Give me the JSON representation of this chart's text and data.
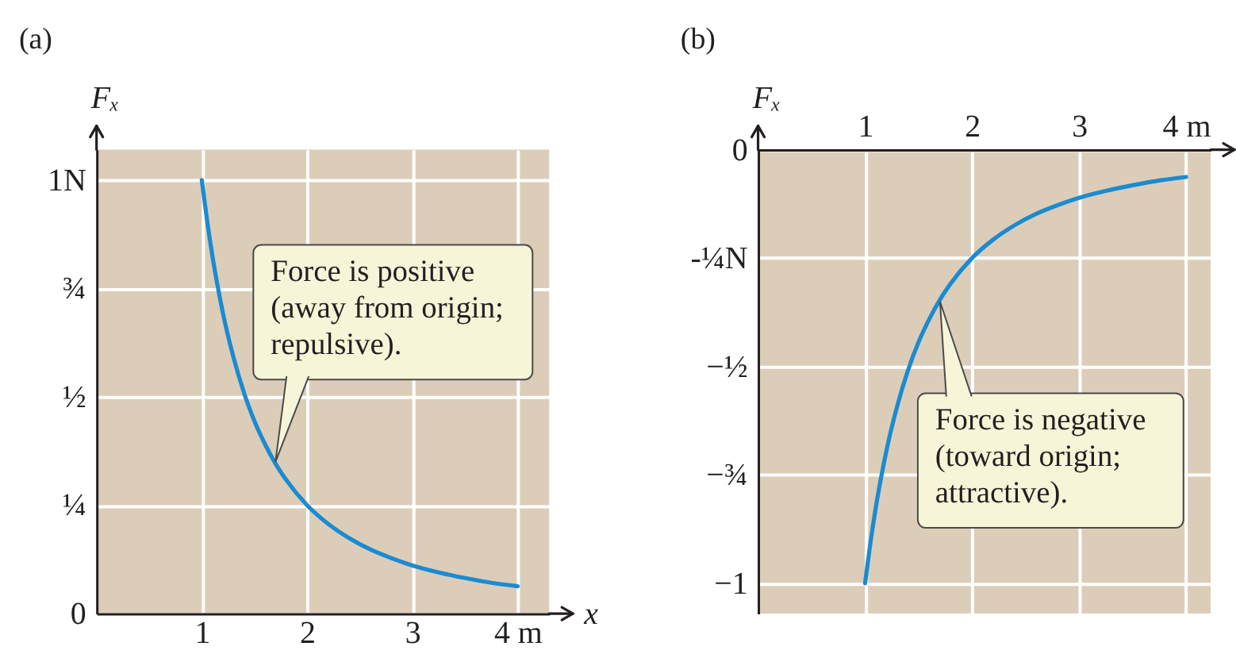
{
  "chart_data": [
    {
      "type": "line",
      "title": "(a)",
      "xlabel": "x",
      "ylabel": "Fₓ",
      "x": [
        1,
        1.05,
        1.1,
        1.15,
        1.2,
        1.3,
        1.4,
        1.5,
        1.6,
        1.7,
        1.8,
        2,
        2.2,
        2.4,
        2.6,
        2.8,
        3,
        3.25,
        3.5,
        3.75,
        4
      ],
      "series": [
        {
          "color": "#1b8bd1",
          "values": [
            1.0,
            0.907,
            0.826,
            0.756,
            0.694,
            0.592,
            0.51,
            0.444,
            0.391,
            0.346,
            0.309,
            0.25,
            0.207,
            0.174,
            0.148,
            0.128,
            0.111,
            0.095,
            0.082,
            0.071,
            0.063
          ]
        }
      ],
      "xlim": [
        0,
        4.3
      ],
      "ylim": [
        0,
        1.07
      ],
      "xticks": [
        1,
        2,
        3,
        {
          "value": 4,
          "label": "4 m"
        }
      ],
      "yticks": [
        0,
        {
          "value": 0.25,
          "label": "¼"
        },
        {
          "value": 0.5,
          "label": "½"
        },
        {
          "value": 0.75,
          "label": "¾"
        },
        {
          "value": 1,
          "label": "1N"
        }
      ],
      "grid": true,
      "line_style": "solid",
      "annotations": [
        {
          "text": "Force is positive\n(away from origin;\nrepulsive).",
          "x": 1.7,
          "y": 0.35
        }
      ]
    },
    {
      "type": "line",
      "title": "(b)",
      "ylabel": "Fₓ",
      "x": [
        1,
        1.05,
        1.1,
        1.15,
        1.2,
        1.3,
        1.4,
        1.5,
        1.6,
        1.7,
        1.8,
        2,
        2.2,
        2.4,
        2.6,
        2.8,
        3,
        3.25,
        3.5,
        3.75,
        4
      ],
      "series": [
        {
          "color": "#1b8bd1",
          "values": [
            -1.0,
            -0.907,
            -0.826,
            -0.756,
            -0.694,
            -0.592,
            -0.51,
            -0.444,
            -0.391,
            -0.346,
            -0.309,
            -0.25,
            -0.207,
            -0.174,
            -0.148,
            -0.128,
            -0.111,
            -0.095,
            -0.082,
            -0.071,
            -0.063
          ]
        }
      ],
      "xlim": [
        0,
        4.23
      ],
      "ylim": [
        -1.07,
        0
      ],
      "xticks": [
        1,
        2,
        3,
        {
          "value": 4,
          "label": "4 m"
        }
      ],
      "yticks": [
        {
          "value": -1,
          "label": "−1"
        },
        {
          "value": -0.75,
          "label": "−¾"
        },
        {
          "value": -0.5,
          "label": "−½"
        },
        {
          "value": -0.25,
          "label": "-¼N"
        },
        0
      ],
      "grid": true,
      "line_style": "solid",
      "annotations": [
        {
          "text": "Force is negative\n(toward origin;\nattractive).",
          "x": 1.7,
          "y": -0.35
        }
      ]
    }
  ]
}
